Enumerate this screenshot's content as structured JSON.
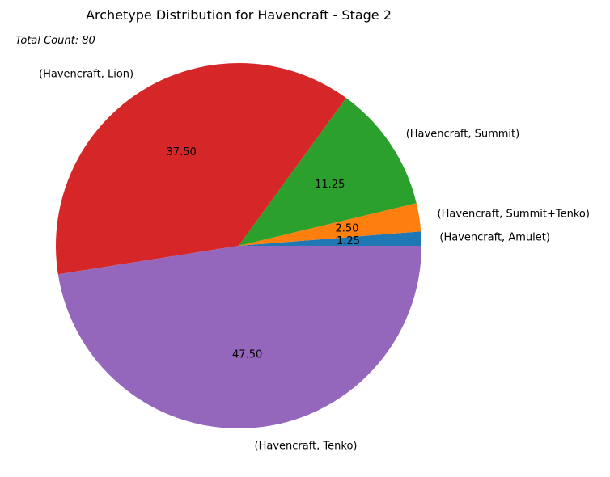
{
  "chart_data": {
    "type": "pie",
    "title": "Archetype Distribution for Havencraft - Stage 2",
    "annotation": "Total Count: 80",
    "start_angle_deg": 0,
    "direction": "counterclockwise",
    "legend": "none",
    "slices": [
      {
        "label": "(Havencraft, Amulet)",
        "value": 1.25,
        "display": "1.25",
        "color": "#1f77b4"
      },
      {
        "label": "(Havencraft, Summit+Tenko)",
        "value": 2.5,
        "display": "2.50",
        "color": "#ff7f0e"
      },
      {
        "label": "(Havencraft, Summit)",
        "value": 11.25,
        "display": "11.25",
        "color": "#2ca02c"
      },
      {
        "label": "(Havencraft, Lion)",
        "value": 37.5,
        "display": "37.50",
        "color": "#d62728"
      },
      {
        "label": "(Havencraft, Tenko)",
        "value": 47.5,
        "display": "47.50",
        "color": "#9467bd"
      }
    ]
  }
}
